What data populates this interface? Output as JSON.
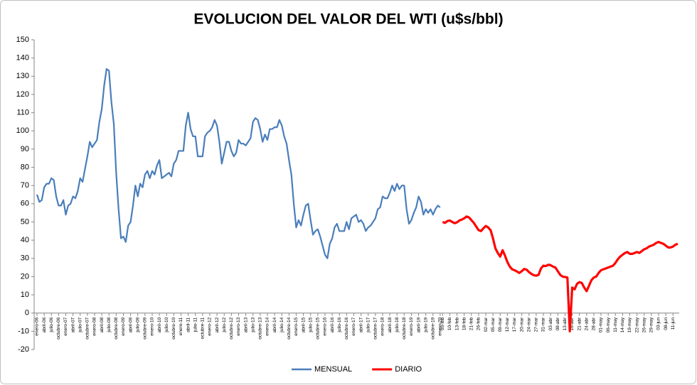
{
  "chart_data": {
    "type": "line",
    "title": "EVOLUCION DEL VALOR DEL WTI (u$s/bbl)",
    "ylim": [
      -20,
      150
    ],
    "yticks": [
      -20,
      -10,
      0,
      10,
      20,
      30,
      40,
      50,
      60,
      70,
      80,
      90,
      100,
      110,
      120,
      130,
      140,
      150
    ],
    "grid": false,
    "legend": "bottom",
    "categories": [
      "enero-06",
      null,
      null,
      "abril-06",
      null,
      null,
      "julio-06",
      null,
      null,
      "octubre-06",
      null,
      null,
      "enero-07",
      null,
      null,
      "abril-07",
      null,
      null,
      "julio-07",
      null,
      null,
      "octubre-07",
      null,
      null,
      "enero-08",
      null,
      null,
      "abril-08",
      null,
      null,
      "julio-08",
      null,
      null,
      "octubre-08",
      null,
      null,
      "enero-09",
      null,
      null,
      "abril-09",
      null,
      null,
      "julio-09",
      null,
      null,
      "octubre-09",
      null,
      null,
      "enero-10",
      null,
      null,
      "abril-10",
      null,
      null,
      "julio-10",
      null,
      null,
      "octubre-10",
      null,
      null,
      "enero-11",
      null,
      null,
      "abril-11",
      null,
      null,
      "julio-11",
      null,
      null,
      "octubre-11",
      null,
      null,
      "enero-12",
      null,
      null,
      "abril-12",
      null,
      null,
      "julio-12",
      null,
      null,
      "octubre-12",
      null,
      null,
      "enero-13",
      null,
      null,
      "abril-13",
      null,
      null,
      "julio-13",
      null,
      null,
      "octubre-13",
      null,
      null,
      "enero-14",
      null,
      null,
      "abril-14",
      null,
      null,
      "julio-14",
      null,
      null,
      "octubre-14",
      null,
      null,
      "enero-15",
      null,
      null,
      "abril-15",
      null,
      null,
      "julio-15",
      null,
      null,
      "octubre-15",
      null,
      null,
      "enero-16",
      null,
      null,
      "abril-16",
      null,
      null,
      "julio-16",
      null,
      null,
      "octubre-16",
      null,
      null,
      "enero-17",
      null,
      null,
      "abril-17",
      null,
      null,
      "julio-17",
      null,
      null,
      "octubre-17",
      null,
      null,
      "enero-18",
      null,
      null,
      "abril-18",
      null,
      null,
      "julio-18",
      null,
      null,
      "octubre-18",
      null,
      null,
      "enero-19",
      null,
      null,
      "abril-19",
      null,
      null,
      "julio-19",
      null,
      null,
      "octubre-19",
      null,
      null,
      "enero-20",
      "05-feb",
      null,
      null,
      "10-feb",
      null,
      null,
      "13-feb",
      null,
      null,
      "18-feb",
      null,
      null,
      "21-feb",
      null,
      null,
      "26-feb",
      null,
      null,
      "02-mar",
      null,
      null,
      "05-mar",
      null,
      null,
      "09-mar",
      null,
      null,
      "12-mar",
      null,
      null,
      "17-mar",
      null,
      null,
      "20-mar",
      null,
      null,
      "24-mar",
      null,
      null,
      "27-mar",
      null,
      null,
      "31-mar",
      null,
      null,
      "03-abr",
      null,
      null,
      "08-abr",
      null,
      null,
      "13-abr",
      null,
      null,
      "16-abr",
      null,
      null,
      "21-abr",
      null,
      null,
      "24-abr",
      null,
      null,
      "28-abr",
      null,
      null,
      "01-may",
      null,
      null,
      "06-may",
      null,
      null,
      "11-may",
      null,
      null,
      "14-may",
      null,
      null,
      "19-may",
      null,
      null,
      "22-may",
      null,
      null,
      "26-may",
      null,
      null,
      "29-may",
      null,
      null,
      "03-jun",
      null,
      null,
      "08-jun",
      null,
      null,
      "11-jun",
      null,
      null
    ],
    "series": [
      {
        "name": "MENSUAL",
        "color": "#4a7ebb",
        "values": [
          65,
          61,
          62,
          69,
          71,
          71,
          74,
          73,
          64,
          59,
          59,
          62,
          54,
          59,
          60,
          64,
          63,
          67,
          74,
          72,
          79,
          86,
          94,
          91,
          93,
          95,
          105,
          112,
          125,
          134,
          133,
          116,
          104,
          77,
          57,
          41,
          42,
          39,
          48,
          50,
          59,
          70,
          64,
          71,
          69,
          76,
          78,
          74,
          78,
          76,
          81,
          84,
          74,
          75,
          76,
          77,
          75,
          82,
          84,
          89,
          89,
          89,
          103,
          110,
          101,
          97,
          97,
          86,
          86,
          86,
          97,
          99,
          100,
          102,
          106,
          103,
          94,
          82,
          88,
          94,
          94,
          89,
          86,
          88,
          95,
          93,
          93,
          92,
          94,
          96,
          105,
          107,
          106,
          101,
          94,
          98,
          95,
          101,
          101,
          102,
          102,
          106,
          103,
          97,
          93,
          84,
          76,
          60,
          47,
          51,
          48,
          54,
          59,
          60,
          51,
          43,
          45,
          46,
          42,
          37,
          32,
          30,
          38,
          41,
          47,
          49,
          45,
          45,
          45,
          50,
          46,
          52,
          53,
          54,
          50,
          51,
          49,
          45,
          47,
          48,
          50,
          52,
          57,
          58,
          64,
          63,
          63,
          66,
          70,
          67,
          71,
          68,
          70,
          70,
          57,
          49,
          51,
          55,
          58,
          64,
          61,
          54,
          57,
          55,
          57,
          54,
          57,
          59,
          58,
          null,
          null,
          null,
          null,
          null,
          null,
          null,
          null,
          null,
          null,
          null,
          null,
          null,
          null,
          null,
          null,
          null,
          null,
          null,
          null,
          null,
          null,
          null,
          null,
          null,
          null,
          null,
          null,
          null,
          null,
          null,
          null,
          null,
          null,
          null,
          null,
          null,
          null,
          null,
          null,
          null,
          null,
          null,
          null,
          null,
          null,
          null,
          null,
          null,
          null,
          null,
          null,
          null,
          null,
          null,
          null,
          null,
          null,
          null,
          null,
          null,
          null,
          null,
          null,
          null,
          null,
          null,
          null,
          null,
          null,
          null,
          null,
          null,
          null,
          null,
          null,
          null,
          null,
          null,
          null,
          null,
          null,
          null,
          null,
          null,
          null,
          null,
          null,
          null,
          null,
          null,
          null,
          null,
          null,
          null,
          null,
          null,
          null,
          null
        ]
      },
      {
        "name": "DIARIO",
        "color": "#ff0000",
        "values": [
          null,
          null,
          null,
          null,
          null,
          null,
          null,
          null,
          null,
          null,
          null,
          null,
          null,
          null,
          null,
          null,
          null,
          null,
          null,
          null,
          null,
          null,
          null,
          null,
          null,
          null,
          null,
          null,
          null,
          null,
          null,
          null,
          null,
          null,
          null,
          null,
          null,
          null,
          null,
          null,
          null,
          null,
          null,
          null,
          null,
          null,
          null,
          null,
          null,
          null,
          null,
          null,
          null,
          null,
          null,
          null,
          null,
          null,
          null,
          null,
          null,
          null,
          null,
          null,
          null,
          null,
          null,
          null,
          null,
          null,
          null,
          null,
          null,
          null,
          null,
          null,
          null,
          null,
          null,
          null,
          null,
          null,
          null,
          null,
          null,
          null,
          null,
          null,
          null,
          null,
          null,
          null,
          null,
          null,
          null,
          null,
          null,
          null,
          null,
          null,
          null,
          null,
          null,
          null,
          null,
          null,
          null,
          null,
          null,
          null,
          null,
          null,
          null,
          null,
          null,
          null,
          null,
          null,
          null,
          null,
          null,
          null,
          null,
          null,
          null,
          null,
          null,
          null,
          null,
          null,
          null,
          null,
          null,
          null,
          null,
          null,
          null,
          null,
          null,
          null,
          null,
          null,
          null,
          null,
          null,
          null,
          null,
          null,
          null,
          null,
          null,
          null,
          null,
          null,
          null,
          null,
          null,
          null,
          null,
          null,
          null,
          null,
          null,
          null,
          null,
          null,
          null,
          null,
          null,
          50,
          49.5,
          50.5,
          50.8,
          50,
          49.3,
          49.8,
          50.8,
          51.3,
          52,
          53,
          52.5,
          51,
          49.5,
          47.5,
          45.5,
          45,
          46.5,
          47.8,
          47,
          45.5,
          41,
          35.5,
          33,
          31,
          34.5,
          31.5,
          28,
          25.5,
          24,
          23.5,
          22.8,
          22,
          23,
          24.2,
          23.8,
          22.5,
          21.5,
          20.8,
          20.5,
          21,
          24.5,
          26,
          25.8,
          26.5,
          26.3,
          25.5,
          25,
          23,
          21,
          20,
          19.8,
          19.5,
          -10,
          14,
          13,
          16,
          17,
          16.5,
          14,
          12,
          15,
          18,
          19.5,
          20,
          22,
          23.5,
          24,
          24.5,
          25,
          25.5,
          26,
          27.5,
          29.5,
          31,
          32,
          33,
          33.5,
          32.5,
          32.5,
          33,
          33.5,
          33,
          34,
          35,
          35.5,
          36.5,
          37,
          37.5,
          38.5,
          39,
          38.5,
          38,
          37,
          36,
          36,
          36.5,
          37.5,
          38
        ]
      }
    ]
  }
}
